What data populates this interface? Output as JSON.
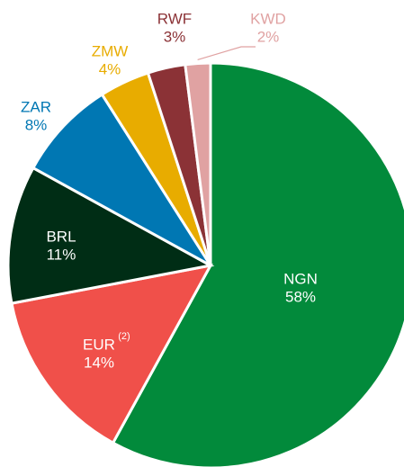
{
  "chart_data": {
    "type": "pie",
    "categories": [
      "NGN",
      "EUR",
      "BRL",
      "ZAR",
      "ZMW",
      "RWF",
      "KWD"
    ],
    "values": [
      58,
      14,
      11,
      8,
      4,
      3,
      2
    ],
    "value_labels": [
      "58%",
      "14%",
      "11%",
      "8%",
      "4%",
      "3%",
      "2%"
    ],
    "colors": [
      "#028a3b",
      "#f0504a",
      "#002d15",
      "#0077b3",
      "#e8ac00",
      "#8b3236",
      "#e0a2a2"
    ],
    "label_positions": [
      "inside",
      "inside",
      "inside",
      "outside",
      "outside",
      "outside",
      "outside"
    ],
    "annotations": [
      {
        "text": "(2)",
        "category_index": 1
      }
    ],
    "start_angle": 0,
    "direction": "clockwise"
  }
}
